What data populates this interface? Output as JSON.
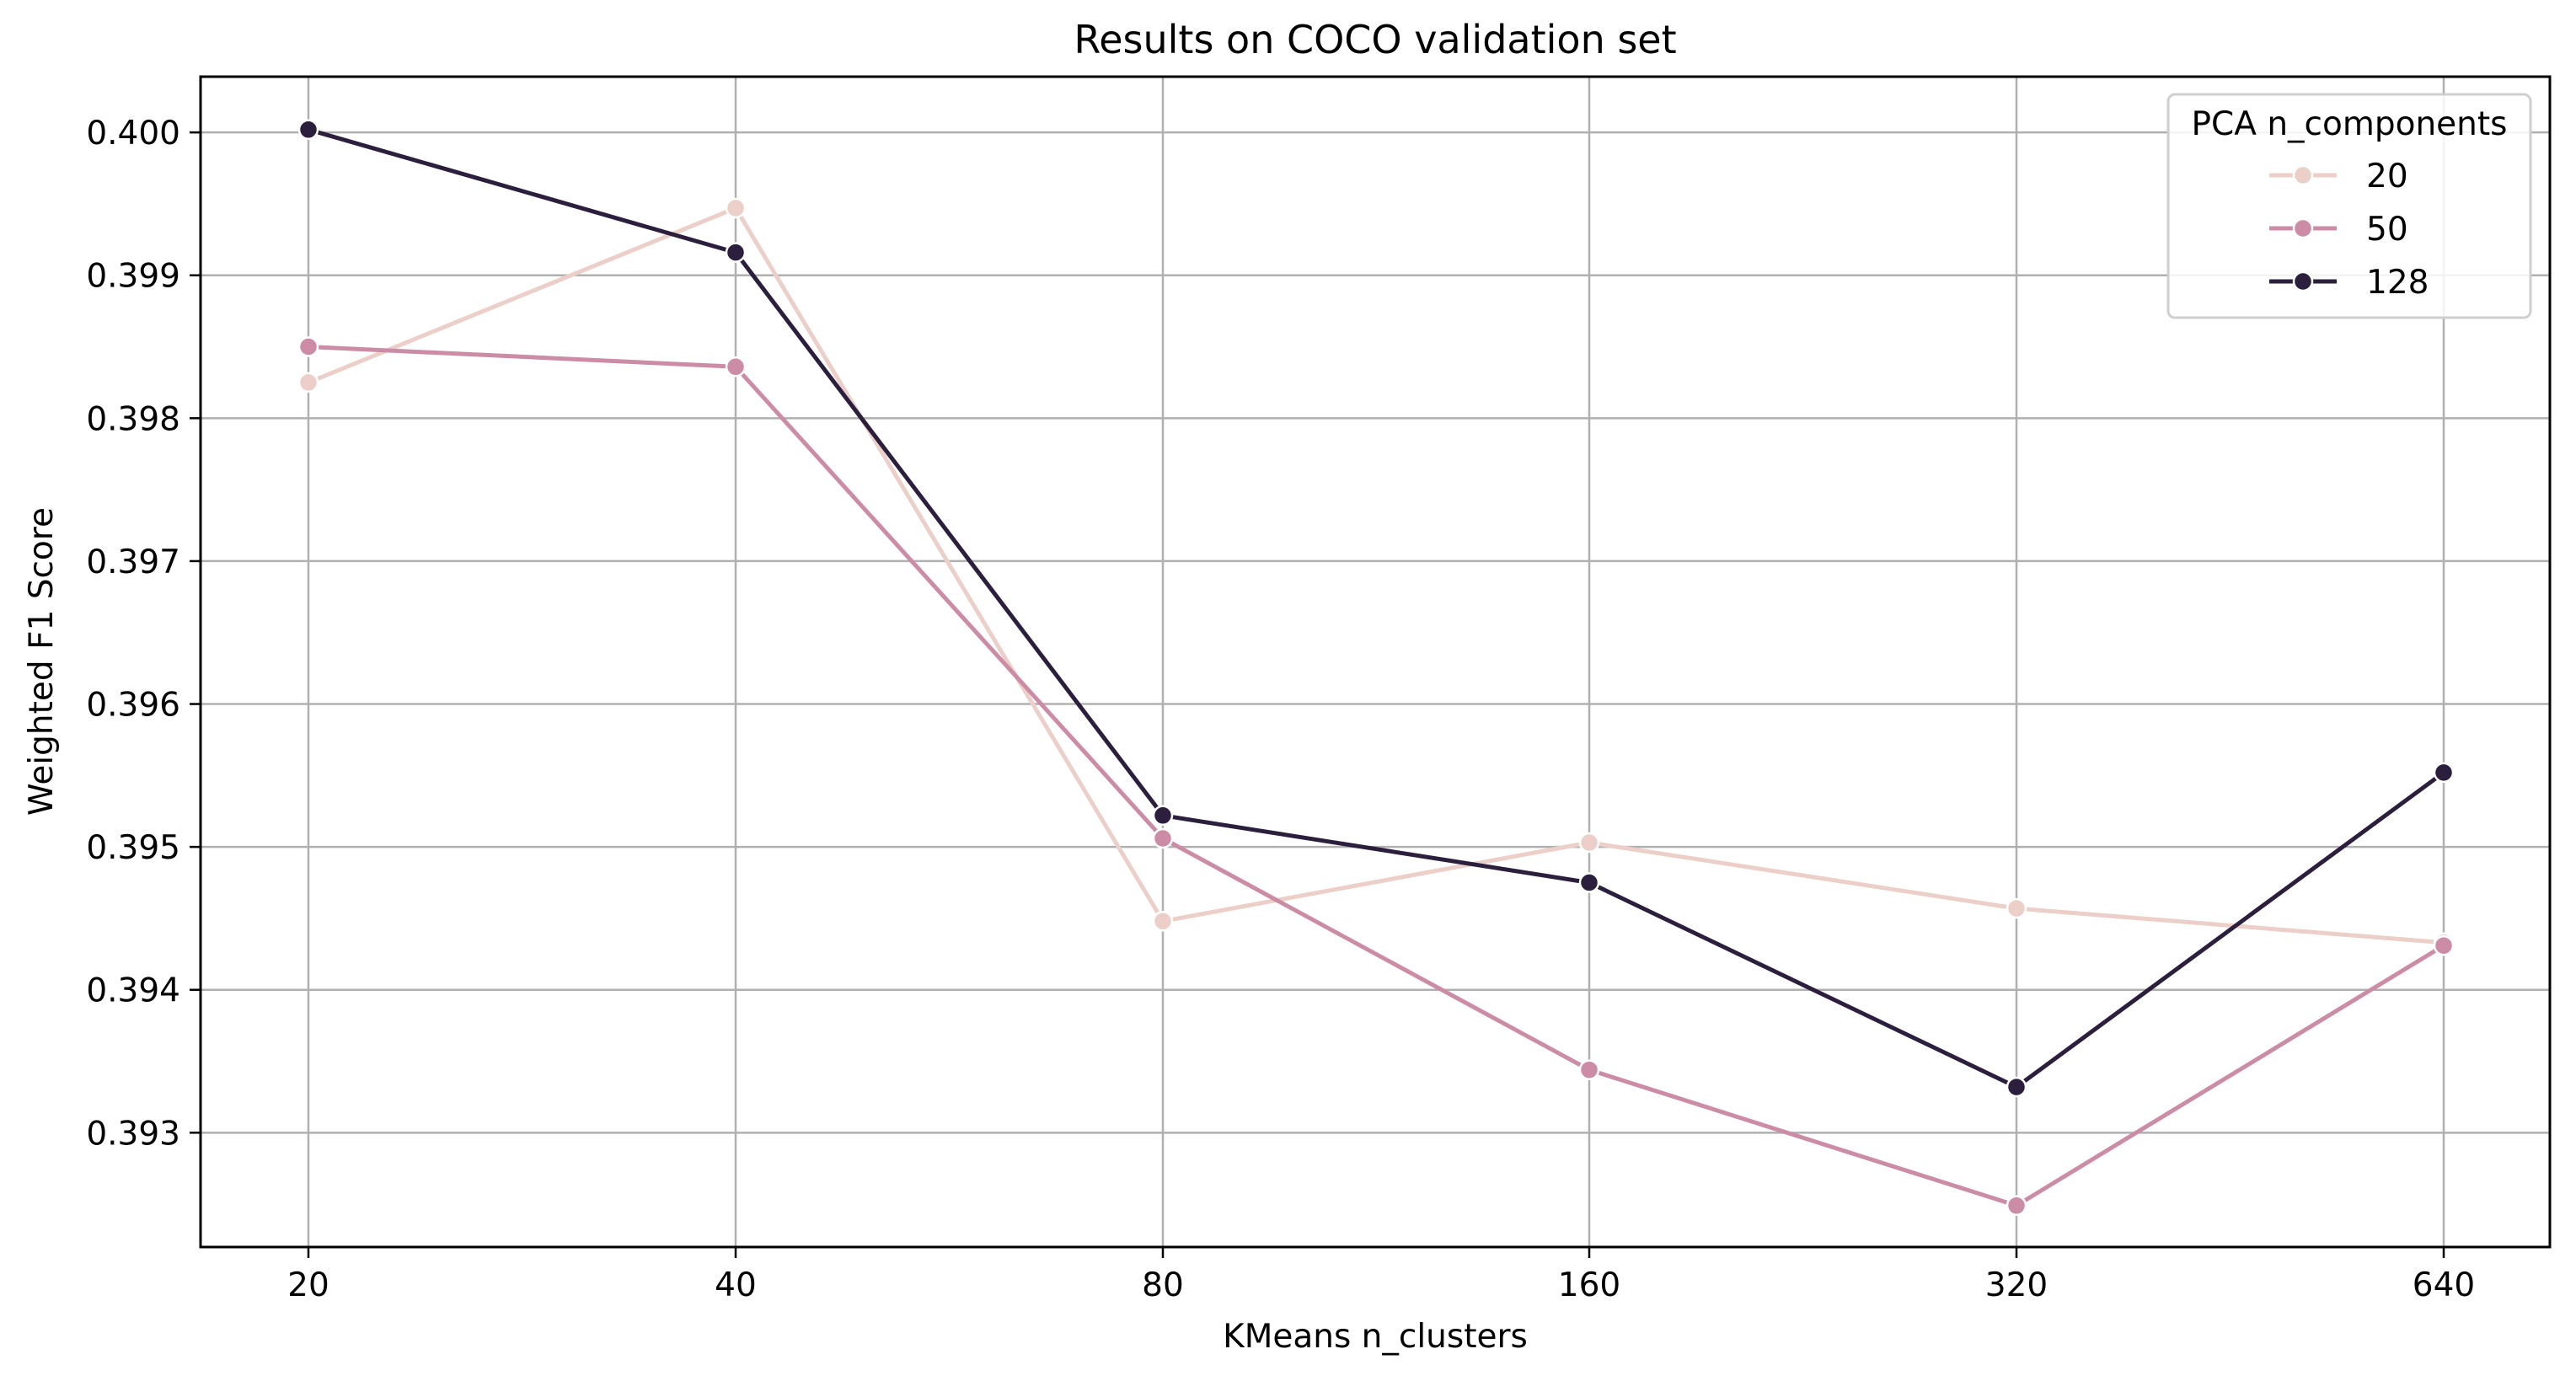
{
  "chart_data": {
    "type": "line",
    "title": "Results on COCO validation set",
    "xlabel": "KMeans n_clusters",
    "ylabel": "Weighted F1 Score",
    "categories": [
      "20",
      "40",
      "80",
      "160",
      "320",
      "640"
    ],
    "y_ticks": [
      "0.393",
      "0.394",
      "0.395",
      "0.396",
      "0.397",
      "0.398",
      "0.399",
      "0.400"
    ],
    "ylim": [
      0.3922,
      0.40039
    ],
    "grid": true,
    "legend": {
      "title": "PCA n_components",
      "placement": "top-right"
    },
    "series": [
      {
        "name": "20",
        "color": "#ebcfc8",
        "values": [
          0.39825,
          0.39947,
          0.39448,
          0.39503,
          0.39457,
          0.39433
        ]
      },
      {
        "name": "50",
        "color": "#cd8ca6",
        "values": [
          0.3985,
          0.39836,
          0.39506,
          0.39344,
          0.39249,
          0.39431
        ]
      },
      {
        "name": "128",
        "color": "#2c1e3d",
        "values": [
          0.40002,
          0.39916,
          0.39522,
          0.39475,
          0.39332,
          0.39552
        ]
      }
    ]
  }
}
